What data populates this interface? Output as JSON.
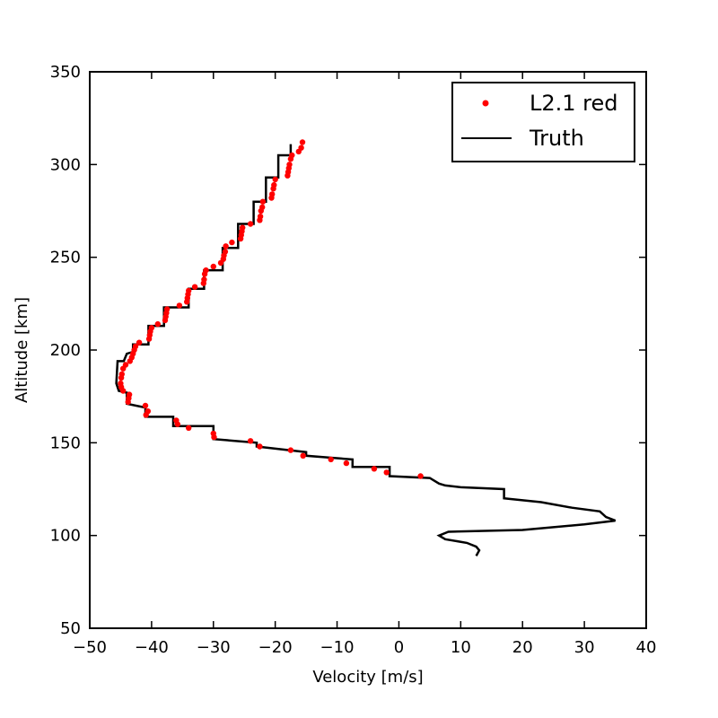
{
  "chart_data": {
    "type": "scatter",
    "title": "",
    "xlabel": "Velocity [m/s]",
    "ylabel": "Altitude [km]",
    "xlim": [
      -50,
      40
    ],
    "ylim": [
      50,
      350
    ],
    "xticks": [
      -50,
      -40,
      -30,
      -20,
      -10,
      0,
      10,
      20,
      30,
      40
    ],
    "yticks": [
      50,
      100,
      150,
      200,
      250,
      300,
      350
    ],
    "grid": false,
    "legend_position": "top-right",
    "series": [
      {
        "name": "L2.1 red",
        "kind": "scatter",
        "color": "#ff0000",
        "points": [
          [
            -15.6,
            312
          ],
          [
            -15.8,
            309
          ],
          [
            -16.2,
            307
          ],
          [
            -17.3,
            305
          ],
          [
            -17.5,
            303
          ],
          [
            -17.7,
            300
          ],
          [
            -17.8,
            298
          ],
          [
            -17.9,
            296
          ],
          [
            -18.0,
            294
          ],
          [
            -20.0,
            292
          ],
          [
            -20.2,
            289
          ],
          [
            -20.3,
            287
          ],
          [
            -20.5,
            284
          ],
          [
            -20.6,
            282
          ],
          [
            -22.0,
            280
          ],
          [
            -22.1,
            277
          ],
          [
            -22.3,
            275
          ],
          [
            -22.4,
            272
          ],
          [
            -22.5,
            270
          ],
          [
            -24.0,
            268
          ],
          [
            -25.3,
            266
          ],
          [
            -25.4,
            264
          ],
          [
            -25.5,
            262
          ],
          [
            -25.6,
            260
          ],
          [
            -27.0,
            258
          ],
          [
            -28.0,
            256
          ],
          [
            -28.1,
            253
          ],
          [
            -28.3,
            251
          ],
          [
            -28.4,
            249
          ],
          [
            -28.8,
            247
          ],
          [
            -30.0,
            245
          ],
          [
            -31.2,
            243
          ],
          [
            -31.4,
            241
          ],
          [
            -31.5,
            238
          ],
          [
            -31.6,
            236
          ],
          [
            -33.0,
            234
          ],
          [
            -34.0,
            232
          ],
          [
            -34.1,
            230
          ],
          [
            -34.2,
            228
          ],
          [
            -34.3,
            226
          ],
          [
            -35.5,
            224
          ],
          [
            -37.5,
            222
          ],
          [
            -37.6,
            220
          ],
          [
            -37.7,
            218
          ],
          [
            -37.8,
            216
          ],
          [
            -39.0,
            214
          ],
          [
            -40.0,
            212
          ],
          [
            -40.2,
            210
          ],
          [
            -40.3,
            208
          ],
          [
            -40.4,
            206
          ],
          [
            -42.0,
            204
          ],
          [
            -42.6,
            202
          ],
          [
            -42.8,
            200
          ],
          [
            -43.0,
            198
          ],
          [
            -43.2,
            196
          ],
          [
            -43.5,
            194
          ],
          [
            -44.2,
            192
          ],
          [
            -44.6,
            190
          ],
          [
            -44.8,
            187
          ],
          [
            -44.9,
            185
          ],
          [
            -45.0,
            182
          ],
          [
            -44.9,
            180
          ],
          [
            -44.6,
            178
          ],
          [
            -43.6,
            176
          ],
          [
            -43.7,
            174
          ],
          [
            -43.8,
            172
          ],
          [
            -41.0,
            170
          ],
          [
            -40.6,
            167
          ],
          [
            -40.9,
            165
          ],
          [
            -36.0,
            162
          ],
          [
            -35.8,
            160
          ],
          [
            -34.0,
            158
          ],
          [
            -30.0,
            155
          ],
          [
            -29.9,
            153
          ],
          [
            -24.0,
            151
          ],
          [
            -22.5,
            148
          ],
          [
            -17.5,
            146
          ],
          [
            -15.5,
            143
          ],
          [
            -11.0,
            141
          ],
          [
            -8.5,
            139
          ],
          [
            -4.0,
            136
          ],
          [
            -2.0,
            134
          ],
          [
            3.5,
            132
          ]
        ]
      },
      {
        "name": "Truth",
        "kind": "line",
        "color": "#000000",
        "points": [
          [
            -17.5,
            311
          ],
          [
            -17.5,
            305
          ],
          [
            -19.5,
            305
          ],
          [
            -19.5,
            293
          ],
          [
            -21.5,
            293
          ],
          [
            -21.5,
            280
          ],
          [
            -23.5,
            280
          ],
          [
            -23.5,
            268
          ],
          [
            -26.0,
            268
          ],
          [
            -26.0,
            255
          ],
          [
            -28.5,
            255
          ],
          [
            -28.5,
            243
          ],
          [
            -31.5,
            243
          ],
          [
            -31.5,
            233
          ],
          [
            -34.0,
            233
          ],
          [
            -34.0,
            223
          ],
          [
            -38.0,
            223
          ],
          [
            -38.0,
            213
          ],
          [
            -40.5,
            213
          ],
          [
            -40.5,
            203
          ],
          [
            -43.0,
            203
          ],
          [
            -43.0,
            199
          ],
          [
            -44.0,
            198
          ],
          [
            -44.5,
            194
          ],
          [
            -45.5,
            194
          ],
          [
            -45.6,
            188
          ],
          [
            -45.7,
            182
          ],
          [
            -45.3,
            178
          ],
          [
            -44.0,
            177
          ],
          [
            -44.0,
            171
          ],
          [
            -41.0,
            169
          ],
          [
            -41.0,
            164
          ],
          [
            -36.5,
            164
          ],
          [
            -36.5,
            159
          ],
          [
            -30.0,
            159
          ],
          [
            -30.0,
            152
          ],
          [
            -23.0,
            150
          ],
          [
            -23.0,
            148
          ],
          [
            -15.0,
            145
          ],
          [
            -15.0,
            143
          ],
          [
            -7.5,
            141
          ],
          [
            -7.5,
            137
          ],
          [
            -1.5,
            137
          ],
          [
            -1.5,
            132
          ],
          [
            5.0,
            131
          ],
          [
            6.5,
            128
          ],
          [
            7.5,
            127
          ],
          [
            10.0,
            126
          ],
          [
            17.0,
            125
          ],
          [
            17.0,
            120
          ],
          [
            23.0,
            118
          ],
          [
            28.0,
            115
          ],
          [
            32.5,
            113
          ],
          [
            33.5,
            110
          ],
          [
            35.0,
            108
          ],
          [
            30.0,
            106
          ],
          [
            20.0,
            103
          ],
          [
            8.0,
            102
          ],
          [
            6.5,
            100
          ],
          [
            7.5,
            98
          ],
          [
            11.0,
            96
          ],
          [
            12.5,
            94
          ],
          [
            13.0,
            92
          ],
          [
            12.5,
            89
          ]
        ]
      }
    ]
  }
}
